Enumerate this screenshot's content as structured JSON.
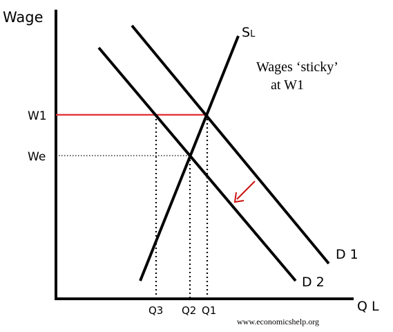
{
  "y_axis_label": "Wage",
  "x_axis_label": "Q L",
  "supply_label": "S",
  "supply_subscript": "L",
  "demand1_label": "D 1",
  "demand2_label": "D 2",
  "wage_labels": {
    "w1": "W1",
    "we": "We"
  },
  "quantity_labels": {
    "q3": "Q3",
    "q2": "Q2",
    "q1": "Q1"
  },
  "annotation": {
    "line1": "Wages ‘sticky’",
    "line2": "at W1"
  },
  "watermark": "www.economicshelp.org",
  "colors": {
    "sticky_wage_line": "#e03a3a",
    "arrow": "#cc1111",
    "lines": "#000000"
  }
}
